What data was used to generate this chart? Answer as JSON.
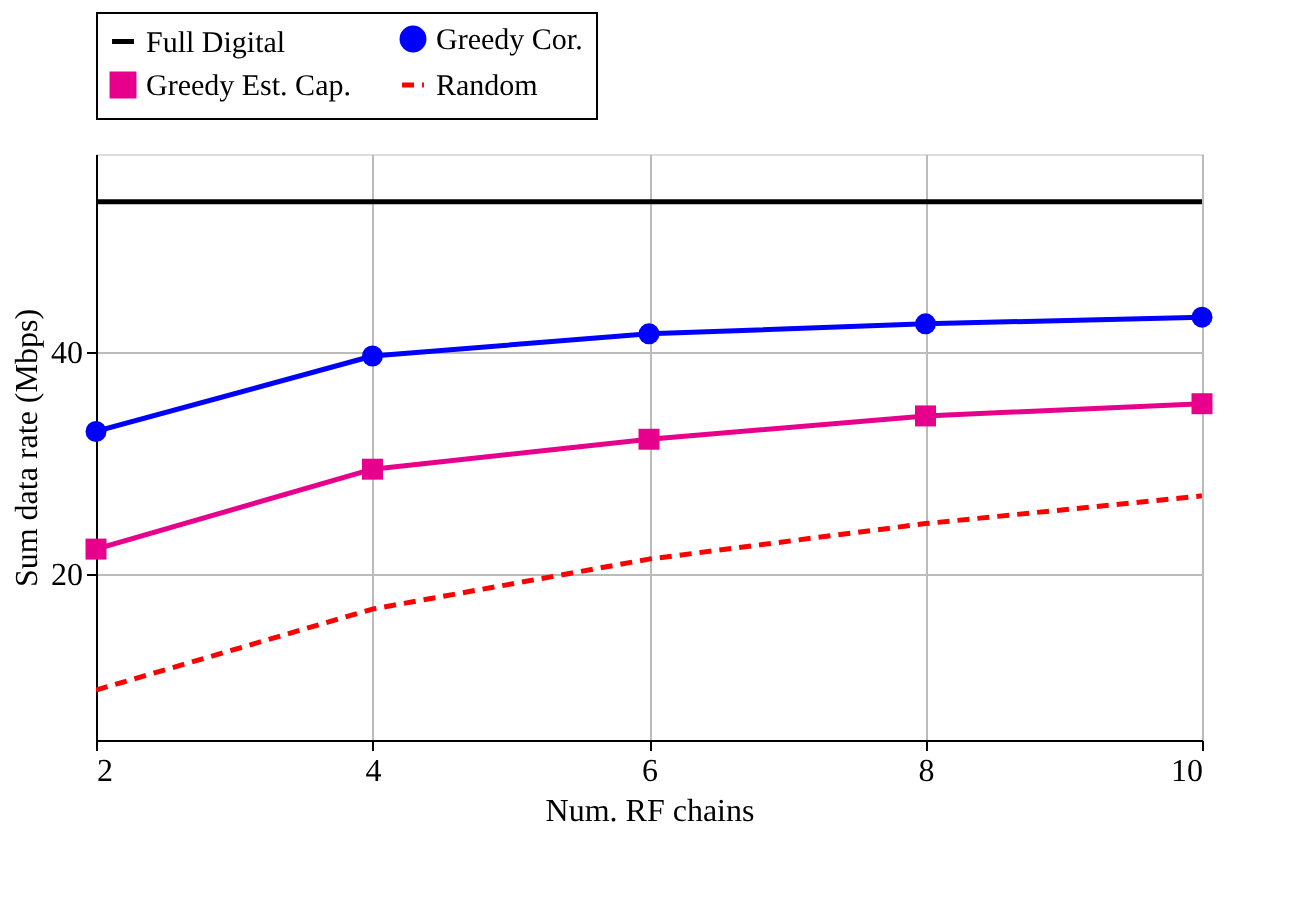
{
  "chart_data": {
    "type": "line",
    "xlabel": "Num. RF chains",
    "ylabel": "Sum data rate (Mbps)",
    "x": [
      2,
      4,
      6,
      8,
      10
    ],
    "xlim": [
      2,
      10
    ],
    "xticks": [
      2,
      4,
      6,
      8,
      10
    ],
    "ylim": [
      5,
      57.8
    ],
    "yticks": [
      20,
      40
    ],
    "grid": true,
    "legend": "top",
    "series": [
      {
        "name": "Full Digital",
        "color": "#000000",
        "values": [
          53.5,
          53.5,
          53.5,
          53.5,
          53.5
        ],
        "marker": "none",
        "line_style": "solid"
      },
      {
        "name": "Greedy Cor.",
        "color": "#0000ff",
        "values": [
          32.8,
          39.6,
          41.6,
          42.5,
          43.1
        ],
        "marker": "circle",
        "line_style": "solid"
      },
      {
        "name": "Greedy Est. Cap.",
        "color": "#e6008c",
        "values": [
          22.2,
          29.4,
          32.1,
          34.2,
          35.3
        ],
        "marker": "square",
        "line_style": "solid"
      },
      {
        "name": "Random",
        "color": "#ff0000",
        "values": [
          9.5,
          16.8,
          21.3,
          24.5,
          27.0
        ],
        "marker": "none",
        "line_style": "dashed"
      }
    ]
  }
}
